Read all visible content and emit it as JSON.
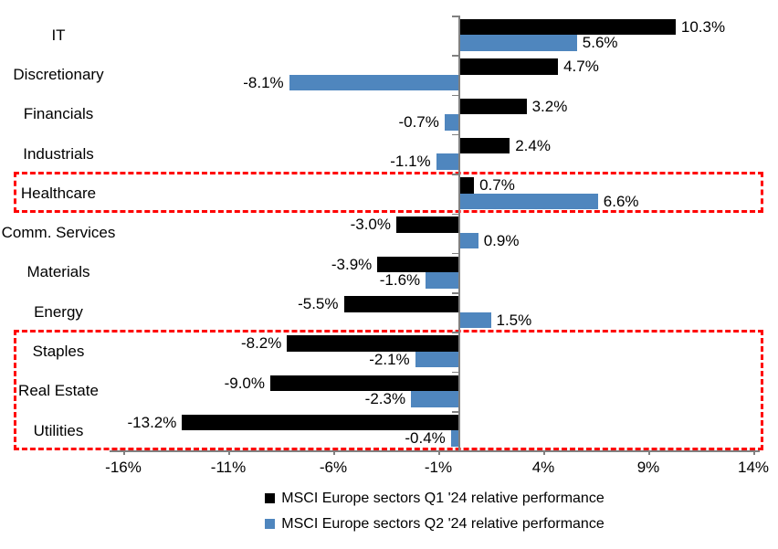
{
  "chart_data": {
    "type": "bar",
    "orientation": "horizontal",
    "title": "",
    "categories": [
      "IT",
      "Discretionary",
      "Financials",
      "Industrials",
      "Healthcare",
      "Comm. Services",
      "Materials",
      "Energy",
      "Staples",
      "Real Estate",
      "Utilities"
    ],
    "series": [
      {
        "name": "MSCI Europe sectors Q1 '24 relative performance",
        "color": "#000000",
        "values": [
          10.3,
          4.7,
          3.2,
          2.4,
          0.7,
          -3.0,
          -3.9,
          -5.5,
          -8.2,
          -9.0,
          -13.2
        ],
        "labels": [
          "10.3%",
          "4.7%",
          "3.2%",
          "2.4%",
          "0.7%",
          "-3.0%",
          "-3.9%",
          "-5.5%",
          "-8.2%",
          "-9.0%",
          "-13.2%"
        ]
      },
      {
        "name": "MSCI Europe sectors Q2 '24 relative performance",
        "color": "#4F86BE",
        "values": [
          5.6,
          -8.1,
          -0.7,
          -1.1,
          6.6,
          0.9,
          -1.6,
          1.5,
          -2.1,
          -2.3,
          -0.4
        ],
        "labels": [
          "5.6%",
          "-8.1%",
          "-0.7%",
          "-1.1%",
          "6.6%",
          "0.9%",
          "-1.6%",
          "1.5%",
          "-2.1%",
          "-2.3%",
          "-0.4%"
        ]
      }
    ],
    "x_axis": {
      "tick_labels": [
        "-16%",
        "-11%",
        "-6%",
        "-1%",
        "4%",
        "9%",
        "14%"
      ],
      "tick_values": [
        -16,
        -11,
        -6,
        -1,
        4,
        9,
        14
      ],
      "min": -16,
      "max": 14
    },
    "grid": false,
    "legend_position": "bottom",
    "legend": [
      "MSCI Europe sectors Q1 '24 relative performance",
      "MSCI Europe sectors Q2 '24 relative performance"
    ],
    "annotations": [
      {
        "type": "highlight-box",
        "style": "dashed",
        "color": "#FF0000",
        "sectors": [
          "Healthcare"
        ]
      },
      {
        "type": "highlight-box",
        "style": "dashed",
        "color": "#FF0000",
        "sectors": [
          "Staples",
          "Real Estate",
          "Utilities"
        ]
      }
    ]
  },
  "colors": {
    "q1_bar": "#000000",
    "q2_bar": "#4F86BE",
    "highlight": "#FF0000",
    "axis": "#808080",
    "text": "#000000",
    "background": "#FFFFFF"
  }
}
